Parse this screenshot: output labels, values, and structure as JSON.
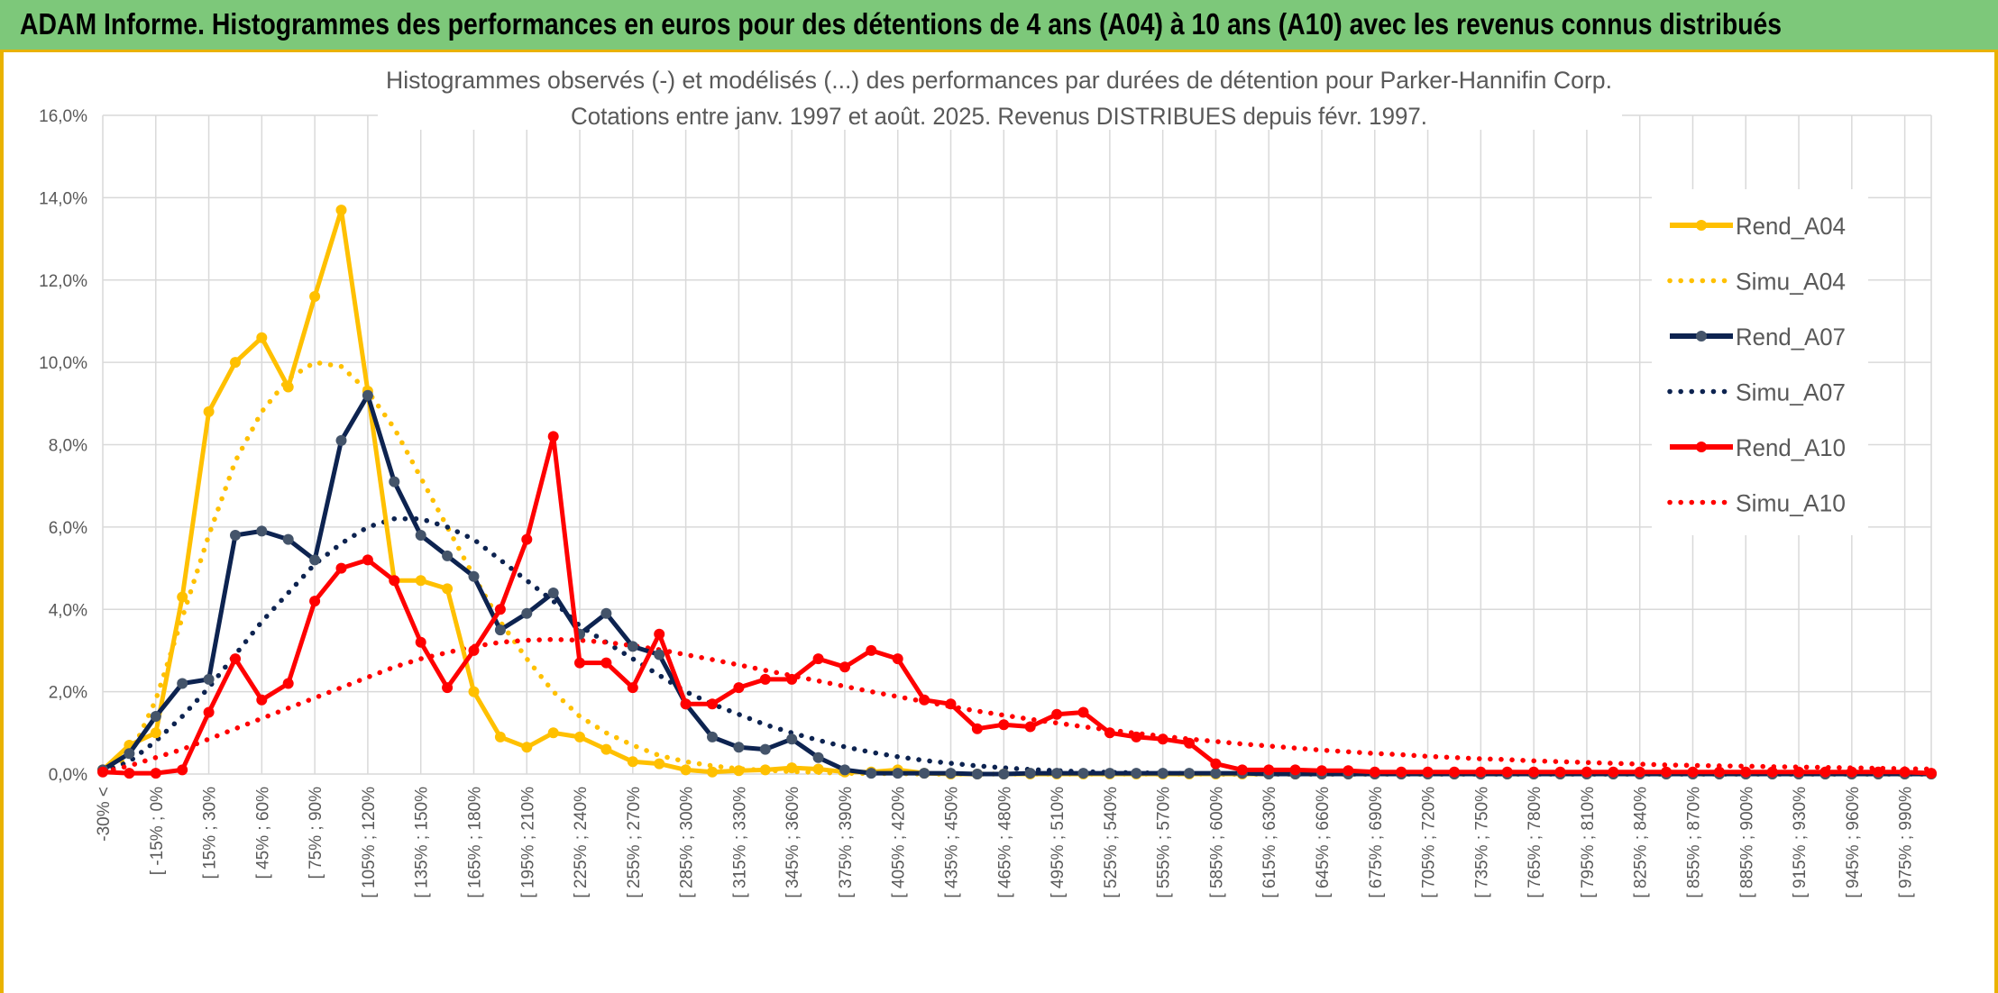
{
  "banner": {
    "title": "ADAM Informe. Histogrammes des performances en euros pour des détentions de 4 ans (A04) à 10 ans (A10) avec les revenus connus distribués"
  },
  "chart_data": {
    "type": "line",
    "title": "Histogrammes observés (-) et modélisés (...) des performances par durées de détention pour Parker-Hannifin Corp.",
    "subtitle": "Cotations entre janv. 1997 et août. 2025. Revenus DISTRIBUES depuis févr. 1997.",
    "xlabel": "",
    "ylabel": "",
    "ylim": [
      0,
      16
    ],
    "yticks": [
      "0,0%",
      "2,0%",
      "4,0%",
      "6,0%",
      "8,0%",
      "10,0%",
      "12,0%",
      "14,0%",
      "16,0%"
    ],
    "grid": true,
    "legend_position": "right",
    "x_labels_shown": [
      "-30% <",
      "[ -15% ; 0%",
      "[ 15% ; 30%",
      "[ 45% ; 60%",
      "[ 75% ; 90%",
      "[ 105% ; 120%",
      "[ 135% ; 150%",
      "[ 165% ; 180%",
      "[ 195% ; 210%",
      "[ 225% ; 240%",
      "[ 255% ; 270%",
      "[ 285% ; 300%",
      "[ 315% ; 330%",
      "[ 345% ; 360%",
      "[ 375% ; 390%",
      "[ 405% ; 420%",
      "[ 435% ; 450%",
      "[ 465% ; 480%",
      "[ 495% ; 510%",
      "[ 525% ; 540%",
      "[ 555% ; 570%",
      "[ 585% ; 600%",
      "[ 615% ; 630%",
      "[ 645% ; 660%",
      "[ 675% ; 690%",
      "[ 705% ; 720%",
      "[ 735% ; 750%",
      "[ 765% ; 780%",
      "[ 795% ; 810%",
      "[ 825% ; 840%",
      "[ 855% ; 870%",
      "[ 885% ; 900%",
      "[ 915% ; 930%",
      "[ 945% ; 960%",
      "[ 975% ; 990%"
    ],
    "n_bins": 70,
    "series": [
      {
        "name": "Rend_A04",
        "style": "solid",
        "color": "#ffc000",
        "markers": true,
        "values": [
          0.1,
          0.7,
          1.0,
          4.3,
          8.8,
          10.0,
          10.6,
          9.4,
          11.6,
          13.7,
          9.3,
          4.7,
          4.7,
          4.5,
          2.0,
          0.9,
          0.65,
          1.0,
          0.9,
          0.6,
          0.3,
          0.25,
          0.1,
          0.05,
          0.08,
          0.1,
          0.15,
          0.12,
          0.05,
          0.05,
          0.1,
          0.02,
          0,
          0,
          0,
          0,
          0,
          0,
          0,
          0,
          0,
          0,
          0,
          0,
          0,
          0,
          0,
          0,
          0,
          0,
          0,
          0,
          0,
          0,
          0,
          0,
          0,
          0,
          0,
          0,
          0,
          0,
          0,
          0,
          0,
          0,
          0,
          0,
          0,
          0
        ]
      },
      {
        "name": "Simu_A04",
        "style": "dotted",
        "color": "#ffc000",
        "markers": false,
        "values": [
          0.05,
          0.4,
          1.8,
          3.8,
          5.8,
          7.6,
          8.8,
          9.6,
          10.0,
          9.9,
          9.3,
          8.4,
          7.2,
          6.0,
          4.8,
          3.7,
          2.8,
          2.0,
          1.4,
          1.0,
          0.7,
          0.45,
          0.3,
          0.2,
          0.13,
          0.09,
          0.06,
          0.04,
          0.02,
          0.01,
          0.01,
          0,
          0,
          0,
          0,
          0,
          0,
          0,
          0,
          0,
          0,
          0,
          0,
          0,
          0,
          0,
          0,
          0,
          0,
          0,
          0,
          0,
          0,
          0,
          0,
          0,
          0,
          0,
          0,
          0,
          0,
          0,
          0,
          0,
          0,
          0,
          0,
          0,
          0,
          0
        ]
      },
      {
        "name": "Rend_A07",
        "style": "solid",
        "color": "#0d2350",
        "markers": true,
        "values": [
          0.1,
          0.5,
          1.4,
          2.2,
          2.3,
          5.8,
          5.9,
          5.7,
          5.2,
          8.1,
          9.2,
          7.1,
          5.8,
          5.3,
          4.8,
          3.5,
          3.9,
          4.4,
          3.4,
          3.9,
          3.1,
          2.9,
          1.7,
          0.9,
          0.65,
          0.6,
          0.85,
          0.4,
          0.1,
          0.02,
          0.02,
          0.02,
          0.02,
          0,
          0,
          0.02,
          0.02,
          0.02,
          0.02,
          0.02,
          0.02,
          0.02,
          0.02,
          0.02,
          0,
          0,
          0,
          0,
          0,
          0,
          0,
          0,
          0,
          0,
          0,
          0,
          0,
          0,
          0,
          0,
          0,
          0,
          0,
          0,
          0,
          0,
          0,
          0,
          0,
          0
        ]
      },
      {
        "name": "Simu_A07",
        "style": "dotted",
        "color": "#0d2350",
        "markers": false,
        "values": [
          0.05,
          0.3,
          0.8,
          1.4,
          2.1,
          2.9,
          3.7,
          4.4,
          5.1,
          5.6,
          6.0,
          6.2,
          6.2,
          6.0,
          5.7,
          5.2,
          4.7,
          4.2,
          3.6,
          3.2,
          2.8,
          2.4,
          2.0,
          1.7,
          1.45,
          1.2,
          1.0,
          0.82,
          0.66,
          0.53,
          0.42,
          0.33,
          0.26,
          0.2,
          0.15,
          0.11,
          0.08,
          0.06,
          0.04,
          0.03,
          0.02,
          0.01,
          0,
          0,
          0,
          0,
          0,
          0,
          0,
          0,
          0,
          0,
          0,
          0,
          0,
          0,
          0,
          0,
          0,
          0,
          0,
          0,
          0,
          0,
          0,
          0,
          0,
          0,
          0,
          0
        ]
      },
      {
        "name": "Rend_A10",
        "style": "solid",
        "color": "#ff0000",
        "markers": true,
        "values": [
          0.05,
          0.02,
          0.02,
          0.1,
          1.5,
          2.8,
          1.8,
          2.2,
          4.2,
          5.0,
          5.2,
          4.7,
          3.2,
          2.1,
          3.0,
          4.0,
          5.7,
          8.2,
          2.7,
          2.7,
          2.1,
          3.4,
          1.7,
          1.7,
          2.1,
          2.3,
          2.3,
          2.8,
          2.6,
          3.0,
          2.8,
          1.8,
          1.7,
          1.1,
          1.2,
          1.15,
          1.45,
          1.5,
          1.0,
          0.9,
          0.85,
          0.75,
          0.25,
          0.1,
          0.1,
          0.1,
          0.08,
          0.08,
          0.05,
          0.05,
          0.05,
          0.05,
          0.05,
          0.05,
          0.05,
          0.05,
          0.05,
          0.05,
          0.05,
          0.05,
          0.05,
          0.05,
          0.05,
          0.05,
          0.05,
          0.05,
          0.05,
          0.05,
          0.05,
          0.02
        ]
      },
      {
        "name": "Simu_A10",
        "style": "dotted",
        "color": "#ff0000",
        "markers": false,
        "values": [
          0.05,
          0.2,
          0.4,
          0.6,
          0.85,
          1.1,
          1.35,
          1.6,
          1.85,
          2.1,
          2.35,
          2.6,
          2.8,
          2.95,
          3.1,
          3.2,
          3.25,
          3.27,
          3.25,
          3.2,
          3.12,
          3.02,
          2.9,
          2.78,
          2.65,
          2.52,
          2.39,
          2.26,
          2.13,
          2.0,
          1.88,
          1.76,
          1.64,
          1.53,
          1.43,
          1.33,
          1.24,
          1.15,
          1.07,
          0.99,
          0.92,
          0.85,
          0.79,
          0.73,
          0.68,
          0.63,
          0.58,
          0.54,
          0.5,
          0.47,
          0.43,
          0.4,
          0.37,
          0.35,
          0.32,
          0.3,
          0.28,
          0.26,
          0.24,
          0.22,
          0.21,
          0.2,
          0.19,
          0.18,
          0.17,
          0.16,
          0.15,
          0.14,
          0.13,
          0.12
        ]
      }
    ]
  }
}
